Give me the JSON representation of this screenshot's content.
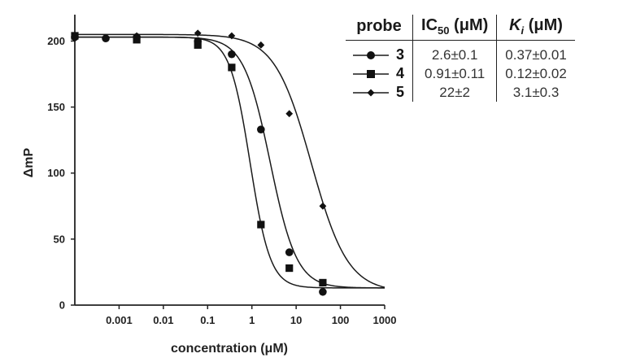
{
  "chart_data": {
    "type": "scatter",
    "xlabel": "concentration (μM)",
    "ylabel": "ΔmP",
    "xscale": "log",
    "xlim": [
      0.0001,
      1000
    ],
    "ylim": [
      0,
      220
    ],
    "x_ticks": [
      {
        "value": 0.001,
        "label": "0.001"
      },
      {
        "value": 0.01,
        "label": "0.01"
      },
      {
        "value": 0.1,
        "label": "0.1"
      },
      {
        "value": 1,
        "label": "1"
      },
      {
        "value": 10,
        "label": "10"
      },
      {
        "value": 100,
        "label": "100"
      },
      {
        "value": 1000,
        "label": "1000"
      }
    ],
    "y_ticks": [
      {
        "value": 0,
        "label": "0"
      },
      {
        "value": 50,
        "label": "50"
      },
      {
        "value": 100,
        "label": "100"
      },
      {
        "value": 150,
        "label": "150"
      },
      {
        "value": 200,
        "label": "200"
      }
    ],
    "series": [
      {
        "name": "3",
        "marker": "circle",
        "x": [
          0.0001,
          0.0005,
          0.0025,
          0.06,
          0.35,
          1.6,
          7.0,
          40
        ],
        "y": [
          203,
          202,
          203,
          200,
          190,
          133,
          40,
          10
        ],
        "fit": {
          "top": 203,
          "bottom": 13,
          "ic50": 2.6,
          "hill": 1.45
        }
      },
      {
        "name": "4",
        "marker": "square",
        "x": [
          0.0001,
          0.0025,
          0.06,
          0.35,
          1.6,
          7.0,
          40
        ],
        "y": [
          204,
          201,
          197,
          180,
          61,
          28,
          17
        ],
        "fit": {
          "top": 203,
          "bottom": 13,
          "ic50": 0.91,
          "hill": 1.9
        }
      },
      {
        "name": "5",
        "marker": "diamond",
        "x": [
          0.0001,
          0.0025,
          0.06,
          0.35,
          1.6,
          7.0,
          40
        ],
        "y": [
          202,
          204,
          206,
          204,
          197,
          145,
          75
        ],
        "fit": {
          "top": 205,
          "bottom": 10,
          "ic50": 22,
          "hill": 1.05
        }
      }
    ]
  },
  "table": {
    "headers": {
      "probe": "probe",
      "ic50_main": "IC",
      "ic50_sub": "50",
      "ic50_unit": " (μM)",
      "ki_main": "K",
      "ki_sub": "i",
      "ki_unit": " (μM)"
    },
    "rows": [
      {
        "probe": "3",
        "ic50": "2.6±0.1",
        "ki": "0.37±0.01"
      },
      {
        "probe": "4",
        "ic50": "0.91±0.11",
        "ki": "0.12±0.02"
      },
      {
        "probe": "5",
        "ic50": "22±2",
        "ki": "3.1±0.3"
      }
    ]
  }
}
